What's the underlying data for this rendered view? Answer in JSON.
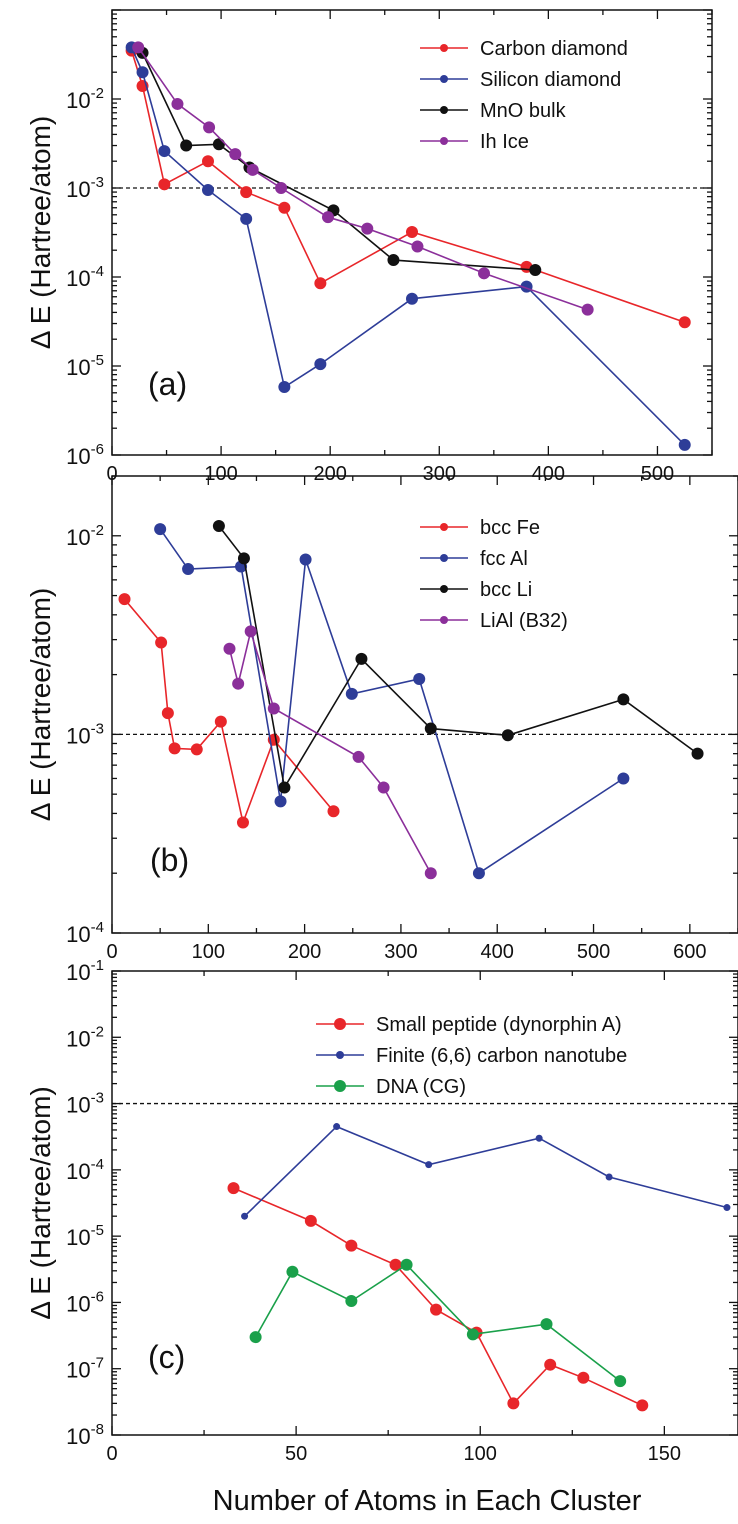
{
  "figure": {
    "xlabel": "Number of Atoms in Each Cluster"
  },
  "chart_data": [
    {
      "type": "line",
      "panel_label": "(a)",
      "ylabel": "Δ E (Hartree/atom)",
      "yscale": "log",
      "xlim": [
        0,
        550
      ],
      "ylim": [
        1e-06,
        0.1
      ],
      "x_ticks": [
        0,
        100,
        200,
        300,
        400,
        500
      ],
      "y_ticks": [
        {
          "v": 0.01,
          "m": "10",
          "e": "-2"
        },
        {
          "v": 0.001,
          "m": "10",
          "e": "-3"
        },
        {
          "v": 0.0001,
          "m": "10",
          "e": "-4"
        },
        {
          "v": 1e-05,
          "m": "10",
          "e": "-5"
        },
        {
          "v": 1e-06,
          "m": "10",
          "e": "-6"
        }
      ],
      "reference_line": 0.001,
      "legend_position": "top-right",
      "series": [
        {
          "name": "Carbon diamond",
          "color": "#e8262a",
          "x": [
            18,
            28,
            48,
            88,
            123,
            158,
            191,
            275,
            380,
            525
          ],
          "y": [
            0.035,
            0.014,
            0.0011,
            0.002,
            0.0009,
            0.0006,
            8.5e-05,
            0.00032,
            0.00013,
            3.1e-05
          ]
        },
        {
          "name": "Silicon diamond",
          "color": "#2e3d98",
          "x": [
            18,
            28,
            48,
            88,
            123,
            158,
            191,
            275,
            380,
            525
          ],
          "y": [
            0.038,
            0.02,
            0.0026,
            0.00095,
            0.00045,
            5.8e-06,
            1.05e-05,
            5.7e-05,
            7.8e-05,
            1.3e-06
          ]
        },
        {
          "name": "MnO bulk",
          "color": "#111111",
          "x": [
            28,
            68,
            98,
            126,
            203,
            258,
            388
          ],
          "y": [
            0.033,
            0.003,
            0.0031,
            0.0017,
            0.00056,
            0.000155,
            0.00012
          ]
        },
        {
          "name": "Ih Ice",
          "color": "#8b2f9a",
          "x": [
            24,
            60,
            89,
            113,
            129,
            155,
            198,
            234,
            280,
            341,
            436
          ],
          "y": [
            0.038,
            0.0088,
            0.0048,
            0.0024,
            0.0016,
            0.001,
            0.00047,
            0.00035,
            0.00022,
            0.00011,
            4.3e-05
          ]
        }
      ]
    },
    {
      "type": "line",
      "panel_label": "(b)",
      "ylabel": "Δ E (Hartree/atom)",
      "yscale": "log",
      "xlim": [
        0,
        650
      ],
      "ylim": [
        0.0001,
        0.02
      ],
      "x_ticks": [
        0,
        100,
        200,
        300,
        400,
        500,
        600
      ],
      "y_ticks": [
        {
          "v": 0.01,
          "m": "10",
          "e": "-2"
        },
        {
          "v": 0.001,
          "m": "10",
          "e": "-3"
        },
        {
          "v": 0.0001,
          "m": "10",
          "e": "-4"
        }
      ],
      "reference_line": 0.001,
      "legend_position": "top-right",
      "series": [
        {
          "name": "bcc Fe",
          "color": "#e8262a",
          "x": [
            13,
            51,
            58,
            65,
            88,
            113,
            136,
            168,
            230
          ],
          "y": [
            0.0048,
            0.0029,
            0.00128,
            0.00085,
            0.00084,
            0.00116,
            0.00036,
            0.00094,
            0.00041
          ]
        },
        {
          "name": "fcc Al",
          "color": "#2e3d98",
          "x": [
            50,
            79,
            134,
            175,
            201,
            249,
            319,
            381,
            531
          ],
          "y": [
            0.0108,
            0.0068,
            0.007,
            0.00046,
            0.0076,
            0.0016,
            0.0019,
            0.0002,
            0.0006
          ]
        },
        {
          "name": "bcc Li",
          "color": "#111111",
          "x": [
            111,
            137,
            179,
            259,
            331,
            411,
            531,
            608
          ],
          "y": [
            0.0112,
            0.0077,
            0.00054,
            0.0024,
            0.00107,
            0.00099,
            0.0015,
            0.0008
          ]
        },
        {
          "name": "LiAl (B32)",
          "color": "#8b2f9a",
          "x": [
            122,
            131,
            144,
            168,
            256,
            282,
            331
          ],
          "y": [
            0.0027,
            0.0018,
            0.0033,
            0.00135,
            0.00077,
            0.00054,
            0.0002
          ]
        }
      ]
    },
    {
      "type": "line",
      "panel_label": "(c)",
      "ylabel": "Δ E (Hartree/atom)",
      "yscale": "log",
      "xlim": [
        0,
        170
      ],
      "ylim": [
        1e-08,
        0.1
      ],
      "x_ticks": [
        0,
        50,
        100,
        150
      ],
      "y_ticks": [
        {
          "v": 0.1,
          "m": "10",
          "e": "-1"
        },
        {
          "v": 0.01,
          "m": "10",
          "e": "-2"
        },
        {
          "v": 0.001,
          "m": "10",
          "e": "-3"
        },
        {
          "v": 0.0001,
          "m": "10",
          "e": "-4"
        },
        {
          "v": 1e-05,
          "m": "10",
          "e": "-5"
        },
        {
          "v": 1e-06,
          "m": "10",
          "e": "-6"
        },
        {
          "v": 1e-07,
          "m": "10",
          "e": "-7"
        },
        {
          "v": 1e-08,
          "m": "10",
          "e": "-8"
        }
      ],
      "reference_line": 0.001,
      "legend_position": "top-right",
      "series": [
        {
          "name": "Small peptide (dynorphin A)",
          "color": "#e8262a",
          "marker": "large",
          "x": [
            33,
            54,
            65,
            77,
            88,
            99,
            109,
            119,
            128,
            144
          ],
          "y": [
            5.3e-05,
            1.7e-05,
            7.2e-06,
            3.7e-06,
            7.8e-07,
            3.5e-07,
            3e-08,
            1.15e-07,
            7.3e-08,
            2.8e-08
          ]
        },
        {
          "name": "Finite (6,6) carbon nanotube",
          "color": "#2e3d98",
          "marker": "small",
          "x": [
            36,
            61,
            86,
            116,
            135,
            167
          ],
          "y": [
            2e-05,
            0.00045,
            0.00012,
            0.0003,
            7.8e-05,
            2.7e-05
          ]
        },
        {
          "name": "DNA (CG)",
          "color": "#1aa04a",
          "marker": "large",
          "x": [
            39,
            49,
            65,
            80,
            98,
            118,
            138
          ],
          "y": [
            3e-07,
            2.9e-06,
            1.05e-06,
            3.7e-06,
            3.3e-07,
            4.7e-07,
            6.5e-08
          ]
        }
      ]
    }
  ]
}
